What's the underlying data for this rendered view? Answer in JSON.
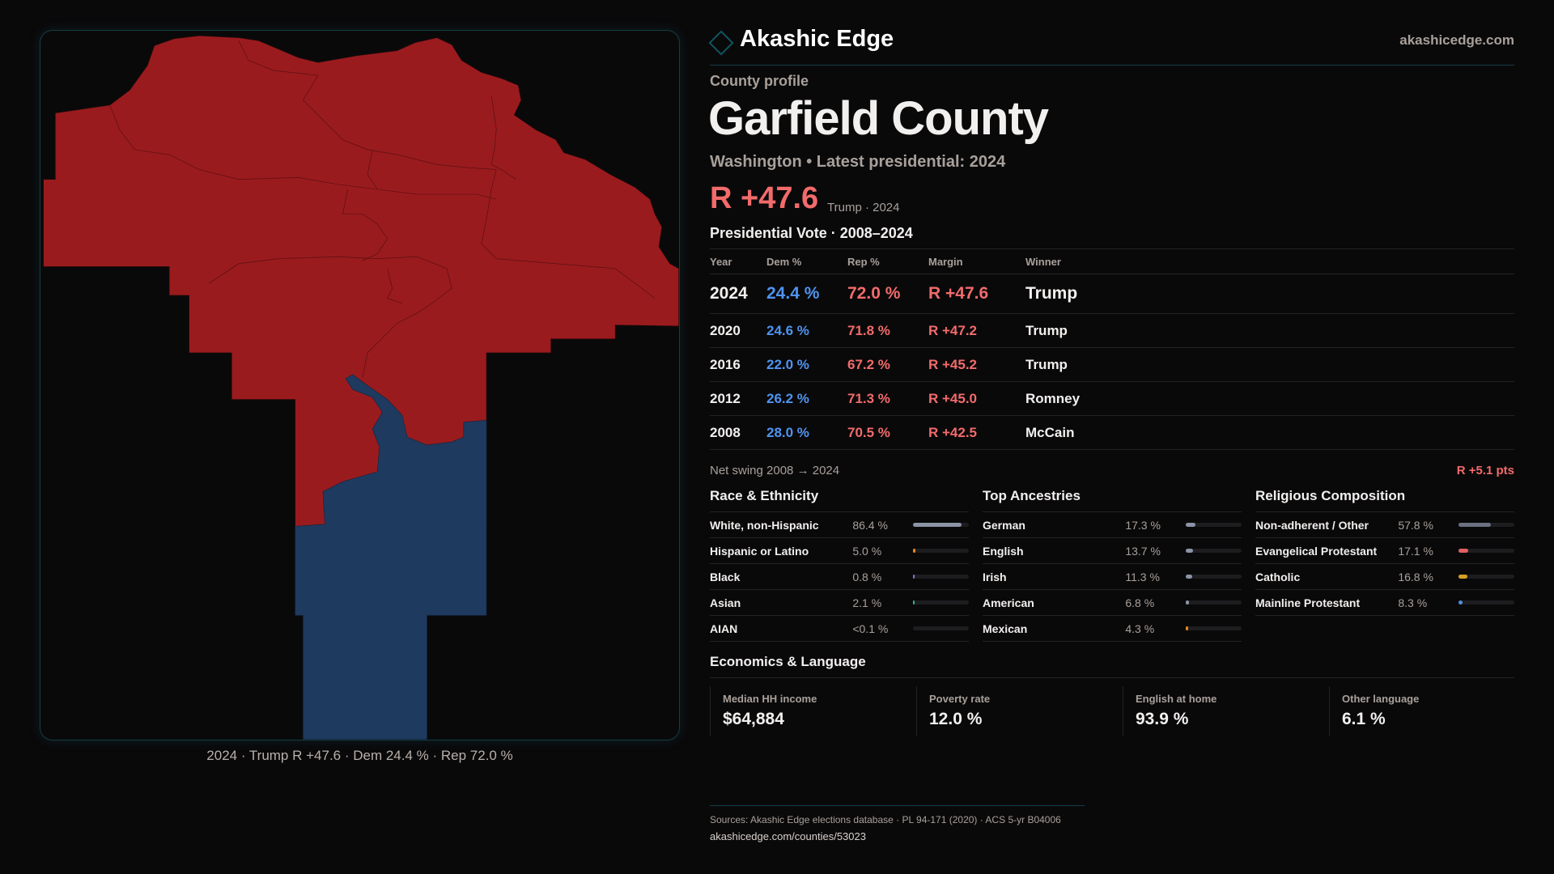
{
  "brand": {
    "name": "Akashic Edge",
    "site": "akashicedge.com"
  },
  "profile": {
    "kicker": "County profile",
    "title": "Garfield County",
    "subtitle": "Washington • Latest presidential: 2024",
    "margin": "R +47.6",
    "margin_note": "Trump · 2024"
  },
  "vote": {
    "heading": "Presidential Vote · 2008–2024",
    "columns": [
      "Year",
      "Dem %",
      "Rep %",
      "Margin",
      "Winner"
    ],
    "rows": [
      {
        "year": "2024",
        "dem": "24.4 %",
        "rep": "72.0 %",
        "margin": "R +47.6",
        "winner": "Trump"
      },
      {
        "year": "2020",
        "dem": "24.6 %",
        "rep": "71.8 %",
        "margin": "R +47.2",
        "winner": "Trump"
      },
      {
        "year": "2016",
        "dem": "22.0 %",
        "rep": "67.2 %",
        "margin": "R +45.2",
        "winner": "Trump"
      },
      {
        "year": "2012",
        "dem": "26.2 %",
        "rep": "71.3 %",
        "margin": "R +45.0",
        "winner": "Romney"
      },
      {
        "year": "2008",
        "dem": "28.0 %",
        "rep": "70.5 %",
        "margin": "R +42.5",
        "winner": "McCain"
      }
    ],
    "swing_label": "Net swing 2008 → 2024",
    "swing_value": "R +5.1 pts"
  },
  "sections": [
    {
      "title": "Race & Ethnicity",
      "rows": [
        {
          "label": "White, non-Hispanic",
          "value": "86.4 %",
          "pct": 86.4,
          "color": "#8a94a6"
        },
        {
          "label": "Hispanic or Latino",
          "value": "5.0 %",
          "pct": 5.0,
          "color": "#e08a1e"
        },
        {
          "label": "Black",
          "value": "0.8 %",
          "pct": 0.8,
          "color": "#8a70d0"
        },
        {
          "label": "Asian",
          "value": "2.1 %",
          "pct": 2.1,
          "color": "#2fb88a"
        },
        {
          "label": "AIAN",
          "value": "<0.1 %",
          "pct": 0,
          "color": "#8a94a6"
        }
      ]
    },
    {
      "title": "Top Ancestries",
      "rows": [
        {
          "label": "German",
          "value": "17.3 %",
          "pct": 17.3,
          "color": "#8a94a6"
        },
        {
          "label": "English",
          "value": "13.7 %",
          "pct": 13.7,
          "color": "#8a94a6"
        },
        {
          "label": "Irish",
          "value": "11.3 %",
          "pct": 11.3,
          "color": "#8a94a6"
        },
        {
          "label": "American",
          "value": "6.8 %",
          "pct": 6.8,
          "color": "#8a94a6"
        },
        {
          "label": "Mexican",
          "value": "4.3 %",
          "pct": 4.3,
          "color": "#e08a1e"
        }
      ]
    },
    {
      "title": "Religious Composition",
      "rows": [
        {
          "label": "Non-adherent / Other",
          "value": "57.8 %",
          "pct": 57.8,
          "color": "#6b7180"
        },
        {
          "label": "Evangelical Protestant",
          "value": "17.1 %",
          "pct": 17.1,
          "color": "#e06060"
        },
        {
          "label": "Catholic",
          "value": "16.8 %",
          "pct": 16.8,
          "color": "#d9a020"
        },
        {
          "label": "Mainline Protestant",
          "value": "8.3 %",
          "pct": 8.3,
          "color": "#4a90e0"
        }
      ]
    }
  ],
  "economics": {
    "title": "Economics & Language",
    "stats": [
      {
        "label": "Median HH income",
        "value": "$64,884"
      },
      {
        "label": "Poverty rate",
        "value": "12.0 %"
      },
      {
        "label": "English at home",
        "value": "93.9 %"
      },
      {
        "label": "Other language",
        "value": "6.1 %"
      }
    ]
  },
  "footer": {
    "sources": "Sources: Akashic Edge elections database · PL 94-171 (2020) · ACS 5-yr B04006",
    "url": "akashicedge.com/counties/53023"
  },
  "map": {
    "caption": "2024 · Trump  R +47.6 · Dem 24.4 % · Rep 72.0 %",
    "colors": {
      "rep": "#9a1b1e",
      "dem": "#1f3a5f"
    }
  }
}
